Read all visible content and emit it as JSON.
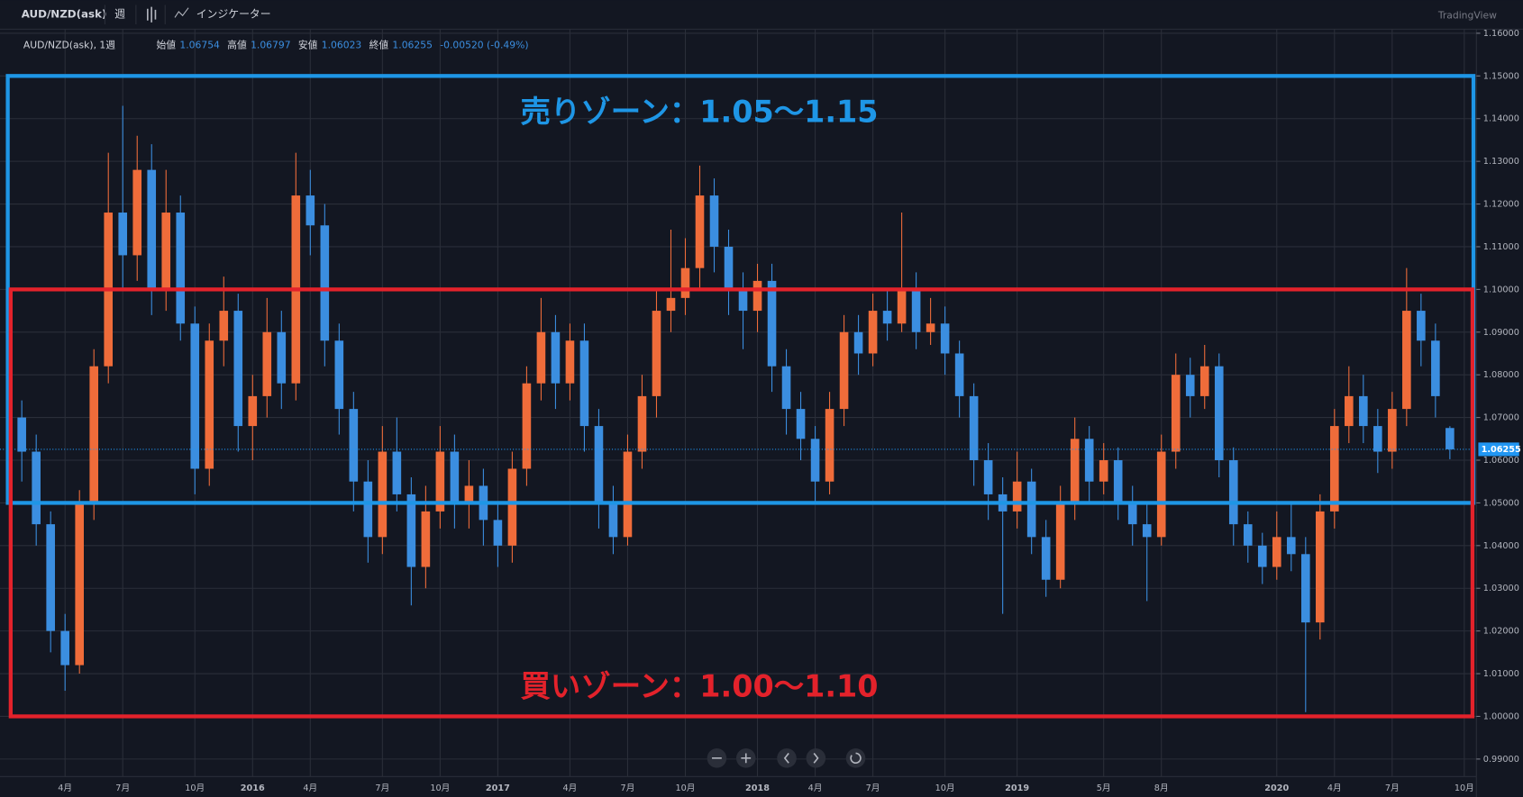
{
  "toolbar": {
    "symbol": "AUD/NZD(ask)",
    "interval": "週",
    "indicators": "インジケーター",
    "brand": "TradingView"
  },
  "legend": {
    "title": "AUD/NZD(ask), 1週",
    "open_label": "始値",
    "open": 1.06754,
    "high_label": "高値",
    "high": 1.06797,
    "low_label": "安値",
    "low": 1.06023,
    "close_label": "終値",
    "close": 1.06255,
    "change": "-0.00520 (-0.49%)"
  },
  "chart_data": {
    "type": "candlestick",
    "up_color": "#ef6c3a",
    "down_color": "#3b8ee0",
    "grid": true,
    "ylim": [
      0.9859,
      1.1605
    ],
    "yticks": [
      {
        "value": 0.99,
        "label": "0.99000"
      },
      {
        "value": 1.0,
        "label": "1.00000"
      },
      {
        "value": 1.01,
        "label": "1.01000"
      },
      {
        "value": 1.02,
        "label": "1.02000"
      },
      {
        "value": 1.03,
        "label": "1.03000"
      },
      {
        "value": 1.04,
        "label": "1.04000"
      },
      {
        "value": 1.05,
        "label": "1.05000"
      },
      {
        "value": 1.06,
        "label": "1.06000"
      },
      {
        "value": 1.07,
        "label": "1.07000"
      },
      {
        "value": 1.08,
        "label": "1.08000"
      },
      {
        "value": 1.09,
        "label": "1.09000"
      },
      {
        "value": 1.1,
        "label": "1.10000"
      },
      {
        "value": 1.11,
        "label": "1.11000"
      },
      {
        "value": 1.12,
        "label": "1.12000"
      },
      {
        "value": 1.13,
        "label": "1.13000"
      },
      {
        "value": 1.14,
        "label": "1.14000"
      },
      {
        "value": 1.15,
        "label": "1.15000"
      },
      {
        "value": 1.16,
        "label": "1.16000"
      }
    ],
    "categories": [
      null,
      null,
      null,
      "4月",
      null,
      null,
      null,
      "7月",
      null,
      null,
      null,
      null,
      "10月",
      null,
      null,
      null,
      "2016",
      null,
      null,
      null,
      "4月",
      null,
      null,
      null,
      null,
      "7月",
      null,
      null,
      null,
      "10月",
      null,
      null,
      null,
      "2017",
      null,
      null,
      null,
      null,
      "4月",
      null,
      null,
      null,
      "7月",
      null,
      null,
      null,
      "10月",
      null,
      null,
      null,
      null,
      "2018",
      null,
      null,
      null,
      "4月",
      null,
      null,
      null,
      "7月",
      null,
      null,
      null,
      null,
      "10月",
      null,
      null,
      null,
      null,
      "2019",
      null,
      null,
      null,
      null,
      null,
      "5月",
      null,
      null,
      null,
      "8月",
      null,
      null,
      null,
      null,
      null,
      null,
      null,
      "2020",
      null,
      null,
      null,
      "4月",
      null,
      null,
      null,
      "7月",
      null,
      null,
      null,
      null,
      "10月"
    ],
    "ohlc": [
      [
        1.07,
        1.074,
        1.055,
        1.062
      ],
      [
        1.062,
        1.066,
        1.04,
        1.045
      ],
      [
        1.045,
        1.048,
        1.015,
        1.02
      ],
      [
        1.02,
        1.024,
        1.006,
        1.012
      ],
      [
        1.012,
        1.053,
        1.01,
        1.05
      ],
      [
        1.05,
        1.086,
        1.046,
        1.082
      ],
      [
        1.082,
        1.132,
        1.078,
        1.118
      ],
      [
        1.118,
        1.143,
        1.1,
        1.108
      ],
      [
        1.108,
        1.136,
        1.102,
        1.128
      ],
      [
        1.128,
        1.134,
        1.094,
        1.1
      ],
      [
        1.1,
        1.128,
        1.095,
        1.118
      ],
      [
        1.118,
        1.122,
        1.088,
        1.092
      ],
      [
        1.092,
        1.096,
        1.052,
        1.058
      ],
      [
        1.058,
        1.092,
        1.054,
        1.088
      ],
      [
        1.088,
        1.103,
        1.082,
        1.095
      ],
      [
        1.095,
        1.099,
        1.062,
        1.068
      ],
      [
        1.068,
        1.08,
        1.06,
        1.075
      ],
      [
        1.075,
        1.098,
        1.07,
        1.09
      ],
      [
        1.09,
        1.095,
        1.072,
        1.078
      ],
      [
        1.078,
        1.132,
        1.074,
        1.122
      ],
      [
        1.122,
        1.128,
        1.108,
        1.115
      ],
      [
        1.115,
        1.12,
        1.082,
        1.088
      ],
      [
        1.088,
        1.092,
        1.066,
        1.072
      ],
      [
        1.072,
        1.076,
        1.048,
        1.055
      ],
      [
        1.055,
        1.06,
        1.036,
        1.042
      ],
      [
        1.042,
        1.068,
        1.038,
        1.062
      ],
      [
        1.062,
        1.07,
        1.048,
        1.052
      ],
      [
        1.052,
        1.056,
        1.026,
        1.035
      ],
      [
        1.035,
        1.054,
        1.03,
        1.048
      ],
      [
        1.048,
        1.068,
        1.044,
        1.062
      ],
      [
        1.062,
        1.066,
        1.044,
        1.05
      ],
      [
        1.05,
        1.06,
        1.044,
        1.054
      ],
      [
        1.054,
        1.058,
        1.04,
        1.046
      ],
      [
        1.046,
        1.05,
        1.035,
        1.04
      ],
      [
        1.04,
        1.062,
        1.036,
        1.058
      ],
      [
        1.058,
        1.082,
        1.054,
        1.078
      ],
      [
        1.078,
        1.098,
        1.074,
        1.09
      ],
      [
        1.09,
        1.094,
        1.072,
        1.078
      ],
      [
        1.078,
        1.092,
        1.074,
        1.088
      ],
      [
        1.088,
        1.092,
        1.062,
        1.068
      ],
      [
        1.068,
        1.072,
        1.044,
        1.05
      ],
      [
        1.05,
        1.054,
        1.038,
        1.042
      ],
      [
        1.042,
        1.066,
        1.04,
        1.062
      ],
      [
        1.062,
        1.08,
        1.058,
        1.075
      ],
      [
        1.075,
        1.1,
        1.07,
        1.095
      ],
      [
        1.095,
        1.114,
        1.09,
        1.098
      ],
      [
        1.098,
        1.112,
        1.094,
        1.105
      ],
      [
        1.105,
        1.129,
        1.1,
        1.122
      ],
      [
        1.122,
        1.126,
        1.104,
        1.11
      ],
      [
        1.11,
        1.114,
        1.094,
        1.1
      ],
      [
        1.1,
        1.104,
        1.086,
        1.095
      ],
      [
        1.095,
        1.106,
        1.09,
        1.102
      ],
      [
        1.102,
        1.106,
        1.076,
        1.082
      ],
      [
        1.082,
        1.086,
        1.066,
        1.072
      ],
      [
        1.072,
        1.076,
        1.06,
        1.065
      ],
      [
        1.065,
        1.068,
        1.05,
        1.055
      ],
      [
        1.055,
        1.076,
        1.052,
        1.072
      ],
      [
        1.072,
        1.094,
        1.068,
        1.09
      ],
      [
        1.09,
        1.094,
        1.08,
        1.085
      ],
      [
        1.085,
        1.099,
        1.082,
        1.095
      ],
      [
        1.095,
        1.1,
        1.088,
        1.092
      ],
      [
        1.092,
        1.118,
        1.09,
        1.1
      ],
      [
        1.1,
        1.104,
        1.086,
        1.09
      ],
      [
        1.09,
        1.098,
        1.087,
        1.092
      ],
      [
        1.092,
        1.096,
        1.08,
        1.085
      ],
      [
        1.085,
        1.088,
        1.07,
        1.075
      ],
      [
        1.075,
        1.078,
        1.054,
        1.06
      ],
      [
        1.06,
        1.064,
        1.046,
        1.052
      ],
      [
        1.052,
        1.056,
        1.024,
        1.048
      ],
      [
        1.048,
        1.062,
        1.044,
        1.055
      ],
      [
        1.055,
        1.058,
        1.038,
        1.042
      ],
      [
        1.042,
        1.046,
        1.028,
        1.032
      ],
      [
        1.032,
        1.054,
        1.03,
        1.05
      ],
      [
        1.05,
        1.07,
        1.046,
        1.065
      ],
      [
        1.065,
        1.068,
        1.05,
        1.055
      ],
      [
        1.055,
        1.064,
        1.052,
        1.06
      ],
      [
        1.06,
        1.063,
        1.046,
        1.05
      ],
      [
        1.05,
        1.054,
        1.04,
        1.045
      ],
      [
        1.045,
        1.05,
        1.027,
        1.042
      ],
      [
        1.042,
        1.066,
        1.04,
        1.062
      ],
      [
        1.062,
        1.085,
        1.058,
        1.08
      ],
      [
        1.08,
        1.084,
        1.07,
        1.075
      ],
      [
        1.075,
        1.087,
        1.072,
        1.082
      ],
      [
        1.082,
        1.085,
        1.056,
        1.06
      ],
      [
        1.06,
        1.063,
        1.04,
        1.045
      ],
      [
        1.045,
        1.048,
        1.036,
        1.04
      ],
      [
        1.04,
        1.043,
        1.031,
        1.035
      ],
      [
        1.035,
        1.048,
        1.032,
        1.042
      ],
      [
        1.042,
        1.05,
        1.034,
        1.038
      ],
      [
        1.038,
        1.042,
        1.001,
        1.022
      ],
      [
        1.022,
        1.052,
        1.018,
        1.048
      ],
      [
        1.048,
        1.072,
        1.044,
        1.068
      ],
      [
        1.068,
        1.082,
        1.064,
        1.075
      ],
      [
        1.075,
        1.08,
        1.064,
        1.068
      ],
      [
        1.068,
        1.072,
        1.057,
        1.062
      ],
      [
        1.062,
        1.076,
        1.058,
        1.072
      ],
      [
        1.072,
        1.105,
        1.068,
        1.095
      ],
      [
        1.095,
        1.099,
        1.082,
        1.088
      ],
      [
        1.088,
        1.092,
        1.07,
        1.075
      ],
      [
        1.06754,
        1.06797,
        1.06023,
        1.06255
      ]
    ],
    "last_price": {
      "value": 1.06255,
      "color": "#2196f3"
    },
    "zones": [
      {
        "label": "売りゾーン：1.05〜1.15",
        "low": 1.05,
        "high": 1.15,
        "color": "#1e96e6"
      },
      {
        "label": "買いゾーン：1.00〜1.10",
        "low": 1.0,
        "high": 1.1,
        "color": "#e3222b"
      }
    ]
  }
}
